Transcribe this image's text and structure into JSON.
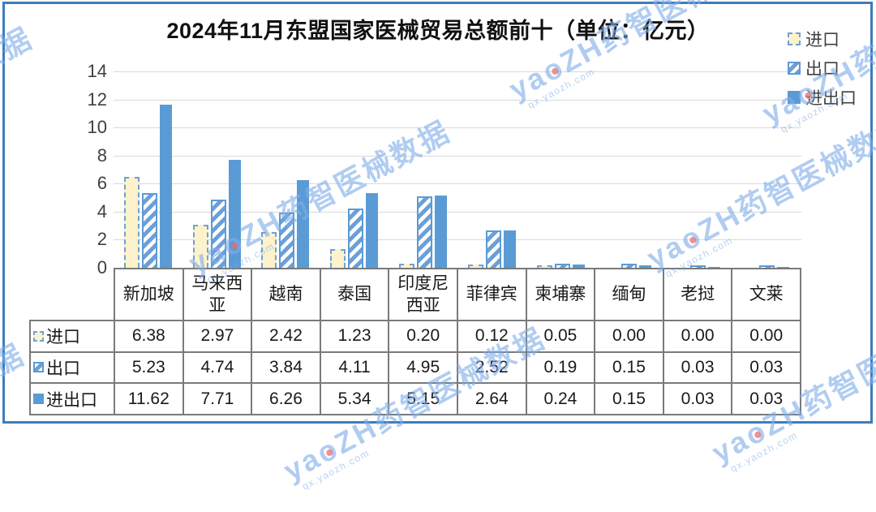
{
  "title": "2024年11月东盟国家医械贸易总额前十（单位：亿元）",
  "legend": {
    "items": [
      {
        "label": "进口",
        "style": "import"
      },
      {
        "label": "出口",
        "style": "export"
      },
      {
        "label": "进出口",
        "style": "total"
      }
    ]
  },
  "chart_data": {
    "type": "bar",
    "title": "2024年11月东盟国家医械贸易总额前十（单位：亿元）",
    "unit": "亿元",
    "categories": [
      "新加坡",
      "马来西亚",
      "越南",
      "泰国",
      "印度尼西亚",
      "菲律宾",
      "柬埔寨",
      "缅甸",
      "老挝",
      "文莱"
    ],
    "series": [
      {
        "name": "进口",
        "style": "import",
        "values": [
          6.38,
          2.97,
          2.42,
          1.23,
          0.2,
          0.12,
          0.05,
          0.0,
          0.0,
          0.0
        ]
      },
      {
        "name": "出口",
        "style": "export",
        "values": [
          5.23,
          4.74,
          3.84,
          4.11,
          4.95,
          2.52,
          0.19,
          0.15,
          0.03,
          0.03
        ]
      },
      {
        "name": "进出口",
        "style": "total",
        "values": [
          11.62,
          7.71,
          6.26,
          5.34,
          5.15,
          2.64,
          0.24,
          0.15,
          0.03,
          0.03
        ]
      }
    ],
    "ylim": [
      0,
      14
    ],
    "yticks": [
      0,
      2,
      4,
      6,
      8,
      10,
      12,
      14
    ],
    "grid": true,
    "legend_position": "top-right",
    "data_table_shown": true,
    "value_format": "0.00"
  },
  "watermark": {
    "text": "yaoZH药智医械数据",
    "subtext": "qx.yaozh.com"
  },
  "colors": {
    "bar_solid": "#5B9BD5",
    "bar_import_fill": "#FDF2CC",
    "bar_border": "#5B9BD5",
    "frame_border": "#3E7CBB",
    "gridline": "#D9D9D9",
    "table_border": "#7A7A7A",
    "axis_text": "#404040",
    "watermark": "#80ADE8"
  }
}
